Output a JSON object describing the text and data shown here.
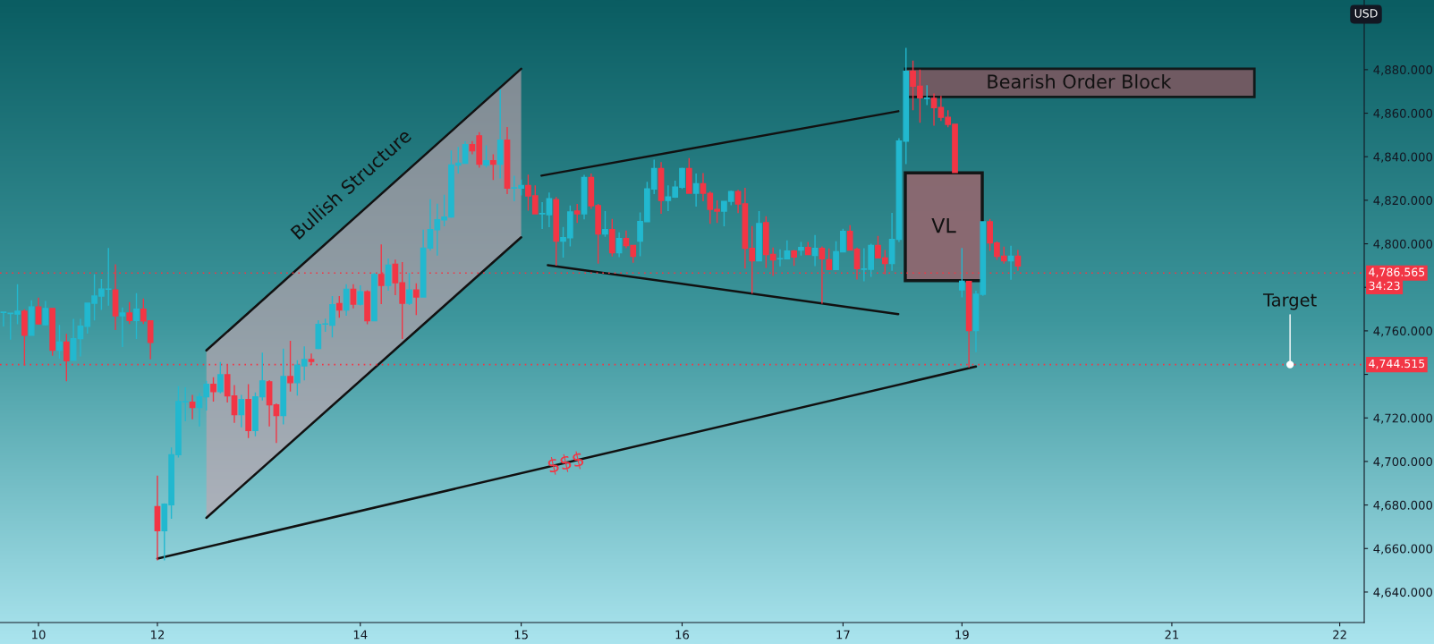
{
  "chart_data": {
    "type": "candlestick",
    "categories": [
      null,
      null,
      null,
      null,
      null,
      "10",
      null,
      null,
      null,
      null,
      null,
      null,
      null,
      null,
      null,
      null,
      null,
      null,
      null,
      null,
      null,
      null,
      "12",
      null,
      null,
      null,
      null,
      null,
      null,
      null,
      null,
      null,
      null,
      null,
      null,
      null,
      null,
      null,
      null,
      null,
      null,
      null,
      null,
      null,
      null,
      null,
      null,
      null,
      null,
      null,
      null,
      "14",
      null,
      null,
      null,
      null,
      null,
      null,
      null,
      null,
      null,
      null,
      null,
      null,
      null,
      null,
      null,
      null,
      null,
      null,
      null,
      null,
      null,
      null,
      "15",
      null,
      null,
      null,
      null,
      null,
      null,
      null,
      null,
      null,
      null,
      null,
      null,
      null,
      null,
      null,
      null,
      null,
      null,
      null,
      null,
      null,
      null,
      "16",
      null,
      null,
      null,
      null,
      null,
      null,
      null,
      null,
      null,
      null,
      null,
      null,
      null,
      null,
      null,
      null,
      null,
      null,
      null,
      null,
      null,
      null,
      "17",
      null,
      null,
      null,
      null,
      null,
      null,
      null,
      null,
      null,
      null,
      null,
      null,
      null,
      null,
      null,
      null,
      "19",
      null,
      null,
      null,
      null,
      null,
      null,
      null,
      null,
      null,
      null,
      null,
      null,
      null,
      null,
      null,
      null,
      null,
      null,
      null,
      null,
      null,
      null,
      null,
      null,
      null,
      null,
      null,
      null,
      null,
      "21",
      null,
      null,
      null,
      null,
      null,
      null,
      null,
      null,
      null,
      null,
      null,
      null,
      null,
      null,
      null,
      null,
      null,
      null,
      null,
      null,
      null,
      null,
      null,
      "22",
      null,
      null,
      null
    ],
    "ohlc": [
      [
        4768.5,
        4768.6,
        4762,
        4768.6
      ],
      [
        4768,
        4768.2,
        4756,
        4768.1
      ],
      [
        4767.7,
        4781.4,
        4763,
        4769
      ],
      [
        4769,
        4769.9,
        4744,
        4758
      ],
      [
        4758,
        4774,
        4758,
        4771
      ],
      [
        4771,
        4775.3,
        4762.8,
        4763.2
      ],
      [
        4762.8,
        4773.7,
        4762.4,
        4770.3
      ],
      [
        4770.3,
        4770.3,
        4748.6,
        4751.1
      ],
      [
        4751.1,
        4762.7,
        4747.2,
        4754.8
      ],
      [
        4754.8,
        4758.6,
        4736.8,
        4746.3
      ],
      [
        4746.5,
        4765.5,
        4746.5,
        4756.4
      ],
      [
        4756.4,
        4765.5,
        4748.2,
        4762.1
      ],
      [
        4762.1,
        4772.9,
        4758.7,
        4772.7
      ],
      [
        4772.7,
        4786.1,
        4764.8,
        4776
      ],
      [
        4776,
        4783.8,
        4769.6,
        4779.2
      ],
      [
        4779.1,
        4798.1,
        4771.6,
        4779.2
      ],
      [
        4778.8,
        4790.6,
        4760.4,
        4766.9
      ],
      [
        4766.9,
        4770.7,
        4752.6,
        4768.2
      ],
      [
        4768.2,
        4773.2,
        4763.1,
        4764.8
      ],
      [
        4764.8,
        4777.3,
        4756.3,
        4769.9
      ],
      [
        4769.9,
        4774.9,
        4763.1,
        4764.6
      ],
      [
        4764.6,
        4764.6,
        4746.9,
        4754.7
      ],
      [
        4679.2,
        4693.5,
        4654.6,
        4668.2
      ],
      [
        4668.2,
        4680.8,
        4654.6,
        4680.4
      ],
      [
        4680.1,
        4706.4,
        4673.7,
        4703.1
      ],
      [
        4703.1,
        4734.6,
        4701.8,
        4727.5
      ],
      [
        4727.4,
        4734.1,
        4718.5,
        4727.5
      ],
      [
        4727.2,
        4730.6,
        4719.4,
        4724.8
      ],
      [
        4724.8,
        4731.4,
        4716.1,
        4729.7
      ],
      [
        4729.7,
        4737.1,
        4723.4,
        4735.4
      ],
      [
        4735.4,
        4738.7,
        4727.5,
        4732.1
      ],
      [
        4732.1,
        4745.7,
        4731.3,
        4739.8
      ],
      [
        4739.8,
        4744.4,
        4727.1,
        4730.1
      ],
      [
        4730.1,
        4735.1,
        4717.7,
        4721.5
      ],
      [
        4721.5,
        4730.6,
        4715.7,
        4728.4
      ],
      [
        4728.4,
        4735.5,
        4710.8,
        4714.2
      ],
      [
        4714.2,
        4731.7,
        4711.6,
        4729.7
      ],
      [
        4729.7,
        4750,
        4728,
        4737
      ],
      [
        4736.6,
        4737.4,
        4716.1,
        4726
      ],
      [
        4726,
        4726.7,
        4708.5,
        4721.1
      ],
      [
        4721.1,
        4751.8,
        4717,
        4739
      ],
      [
        4739,
        4755.4,
        4732.1,
        4736.2
      ],
      [
        4736.2,
        4746.5,
        4730.3,
        4744.3
      ],
      [
        4743.9,
        4752.9,
        4737.3,
        4746.8
      ],
      [
        4746.8,
        4749.6,
        4744.3,
        4746
      ],
      [
        4751.9,
        4764.9,
        4751.5,
        4763
      ],
      [
        4763.1,
        4765.6,
        4759.5,
        4763.2
      ],
      [
        4762.6,
        4776,
        4757,
        4772
      ],
      [
        4772.5,
        4776,
        4766,
        4769.6
      ],
      [
        4769.6,
        4781.4,
        4766.9,
        4779.1
      ],
      [
        4779.1,
        4781.4,
        4770.3,
        4772.3
      ],
      [
        4772.3,
        4780.9,
        4771.7,
        4778
      ],
      [
        4778,
        4778.7,
        4763,
        4764.7
      ],
      [
        4764.7,
        4786.6,
        4764.7,
        4785.9
      ],
      [
        4785.9,
        4799.7,
        4772.3,
        4780.9
      ],
      [
        4780.9,
        4793.2,
        4778.4,
        4790.2
      ],
      [
        4790.6,
        4792.7,
        4776.4,
        4782.1
      ],
      [
        4782.1,
        4791.6,
        4756.3,
        4772.7
      ],
      [
        4772.7,
        4786.6,
        4771.9,
        4778.8
      ],
      [
        4778.8,
        4781.8,
        4767.3,
        4775.6
      ],
      [
        4775.6,
        4806.5,
        4775.6,
        4798
      ],
      [
        4798,
        4820.5,
        4796.8,
        4806.5
      ],
      [
        4806.5,
        4818.4,
        4794.6,
        4811
      ],
      [
        4811,
        4822.5,
        4808,
        4812.3
      ],
      [
        4812.3,
        4842.9,
        4811.9,
        4836.2
      ],
      [
        4836.2,
        4844.5,
        4832.3,
        4837
      ],
      [
        4837,
        4847.2,
        4837,
        4845.6
      ],
      [
        4845.6,
        4847.2,
        4841.1,
        4842.7
      ],
      [
        4849.6,
        4851.3,
        4835,
        4836.6
      ],
      [
        4836.2,
        4845.2,
        4835.1,
        4838.2
      ],
      [
        4838.2,
        4841.1,
        4829.3,
        4836.6
      ],
      [
        4836.6,
        4870.9,
        4830,
        4847.6
      ],
      [
        4847.6,
        4853.7,
        4822.8,
        4825.6
      ],
      [
        4825.6,
        4831.3,
        4819.5,
        4825.7
      ],
      [
        4825.6,
        4829.5,
        4822.2,
        4826.8
      ],
      [
        4826.8,
        4831.8,
        4815.2,
        4822
      ],
      [
        4822,
        4826.8,
        4813.8,
        4813.8
      ],
      [
        4813.8,
        4819.1,
        4806.8,
        4813.9
      ],
      [
        4813.4,
        4823.6,
        4807.6,
        4820.7
      ],
      [
        4820.3,
        4821.5,
        4790,
        4801.2
      ],
      [
        4801.2,
        4807.7,
        4793.7,
        4802.8
      ],
      [
        4802.8,
        4817.6,
        4798.8,
        4814.6
      ],
      [
        4815,
        4818.3,
        4809.6,
        4813.8
      ],
      [
        4813.8,
        4831.7,
        4811.2,
        4830.5
      ],
      [
        4830.5,
        4832.3,
        4816,
        4817.5
      ],
      [
        4817.5,
        4818.3,
        4790.9,
        4804.5
      ],
      [
        4804.5,
        4815,
        4803.2,
        4806.5
      ],
      [
        4806.5,
        4811.4,
        4794.2,
        4795.9
      ],
      [
        4795.9,
        4805.3,
        4793.9,
        4802.4
      ],
      [
        4802.4,
        4806.1,
        4798,
        4799.2
      ],
      [
        4799.2,
        4799.4,
        4791.3,
        4794.3
      ],
      [
        4801.2,
        4814.4,
        4794.3,
        4810.2
      ],
      [
        4810.2,
        4828.5,
        4810.2,
        4825.2
      ],
      [
        4825.2,
        4838.6,
        4822.8,
        4834.6
      ],
      [
        4834.6,
        4837.5,
        4813.8,
        4819.9
      ],
      [
        4819.9,
        4826.8,
        4815,
        4821.5
      ],
      [
        4821.5,
        4829,
        4821.1,
        4826
      ],
      [
        4826,
        4835,
        4825.2,
        4834.6
      ],
      [
        4834.6,
        4839.4,
        4823.2,
        4823.2
      ],
      [
        4823.2,
        4832.3,
        4817.1,
        4827.6
      ],
      [
        4827.6,
        4832.5,
        4819.5,
        4823.2
      ],
      [
        4823.2,
        4824.1,
        4809.2,
        4815.8
      ],
      [
        4815.8,
        4820,
        4809.6,
        4815
      ],
      [
        4815,
        4819.5,
        4808,
        4819.5
      ],
      [
        4819.5,
        4824.5,
        4817.7,
        4824
      ],
      [
        4824,
        4824.8,
        4814.1,
        4818.3
      ],
      [
        4818.3,
        4825.7,
        4788.6,
        4797.9
      ],
      [
        4797.9,
        4808.1,
        4777.1,
        4792.2
      ],
      [
        4792.2,
        4815,
        4792.2,
        4809.3
      ],
      [
        4809.7,
        4812.7,
        4788.9,
        4795.1
      ],
      [
        4795.1,
        4798.3,
        4785.2,
        4792.6
      ],
      [
        4793.1,
        4797.5,
        4789.7,
        4793.2
      ],
      [
        4793.1,
        4801.6,
        4793.1,
        4796.7
      ],
      [
        4796.7,
        4797.1,
        4789.9,
        4793.9
      ],
      [
        4797.1,
        4800.8,
        4794.6,
        4798.3
      ],
      [
        4798.3,
        4800.8,
        4795.1,
        4795.1
      ],
      [
        4794.7,
        4804,
        4789.8,
        4797.9
      ],
      [
        4797.9,
        4798.8,
        4772.5,
        4793.1
      ],
      [
        4792.6,
        4797.9,
        4788.2,
        4788.2
      ],
      [
        4788.2,
        4801.2,
        4788.2,
        4796.3
      ],
      [
        4796.3,
        4806.9,
        4796.3,
        4805.7
      ],
      [
        4805.7,
        4808.5,
        4797.1,
        4797.1
      ],
      [
        4797.5,
        4798.3,
        4783.6,
        4788.6
      ],
      [
        4788.3,
        4798,
        4782.8,
        4788.4
      ],
      [
        4788.3,
        4800,
        4784.8,
        4799.2
      ],
      [
        4799.2,
        4803.6,
        4793.5,
        4793.5
      ],
      [
        4793.5,
        4797.1,
        4786,
        4791
      ],
      [
        4791,
        4814.2,
        4787.6,
        4802
      ],
      [
        4802.1,
        4848.5,
        4800.8,
        4847.2
      ],
      [
        4847.2,
        4890,
        4836.6,
        4879.3
      ],
      [
        4879.3,
        4884.2,
        4861.4,
        4872.4
      ],
      [
        4872.4,
        4880.1,
        4855.6,
        4867.1
      ],
      [
        4866.8,
        4872.9,
        4863.7,
        4866.9
      ],
      [
        4866.8,
        4869.1,
        4854.3,
        4862.6
      ],
      [
        4862.6,
        4867.9,
        4856.4,
        4858.1
      ],
      [
        4858.1,
        4861.4,
        4853.5,
        4854.9
      ],
      [
        4854.9,
        4854.9,
        4832.8,
        4832.8
      ],
      [
        4778.8,
        4798.1,
        4775.4,
        4782.8
      ],
      [
        4782.7,
        4782.7,
        4743.1,
        4760.1
      ],
      [
        4760.1,
        4778.4,
        4750.2,
        4776.8
      ],
      [
        4776.8,
        4810.1,
        4776.1,
        4810.1
      ],
      [
        4810.1,
        4811.4,
        4796.7,
        4800.4
      ],
      [
        4800.4,
        4801.2,
        4792.6,
        4794.3
      ],
      [
        4794.3,
        4798.7,
        4790.9,
        4792.2
      ],
      [
        4792.2,
        4799.1,
        4783.5,
        4794.3
      ],
      [
        4794.3,
        4797.1,
        4787.6,
        4789.8
      ],
      null,
      null,
      null,
      null,
      null,
      null,
      null,
      null,
      null,
      null,
      null,
      null,
      null,
      null,
      null,
      null,
      null,
      null,
      null,
      null,
      null,
      null,
      null,
      null,
      null,
      null,
      null,
      null,
      null,
      null,
      null,
      null,
      null,
      null,
      null,
      null,
      null,
      null,
      null,
      null,
      null,
      null,
      null,
      null,
      null,
      null,
      null,
      null,
      null
    ],
    "colors": [
      "#22b8cf",
      "#22b8cf",
      "#22b8cf",
      "#f23645",
      "#22b8cf",
      "#f23645",
      "#22b8cf",
      "#f23645",
      "#22b8cf",
      "#f23645",
      "#22b8cf",
      "#22b8cf",
      "#22b8cf",
      "#22b8cf",
      "#22b8cf",
      "#22b8cf",
      "#f23645",
      "#22b8cf",
      "#f23645",
      "#22b8cf",
      "#f23645",
      "#f23645",
      "#f23645",
      "#22b8cf",
      "#22b8cf",
      "#22b8cf",
      "#22b8cf",
      "#f23645",
      "#22b8cf",
      "#22b8cf",
      "#f23645",
      "#22b8cf",
      "#f23645",
      "#f23645",
      "#22b8cf",
      "#f23645",
      "#22b8cf",
      "#22b8cf",
      "#f23645",
      "#f23645",
      "#22b8cf",
      "#f23645",
      "#22b8cf",
      "#22b8cf",
      "#f23645",
      "#22b8cf",
      "#22b8cf",
      "#22b8cf",
      "#f23645",
      "#22b8cf",
      "#f23645",
      "#22b8cf",
      "#f23645",
      "#22b8cf",
      "#f23645",
      "#22b8cf",
      "#f23645",
      "#f23645",
      "#22b8cf",
      "#f23645",
      "#22b8cf",
      "#22b8cf",
      "#22b8cf",
      "#22b8cf",
      "#22b8cf",
      "#22b8cf",
      "#22b8cf",
      "#f23645",
      "#f23645",
      "#22b8cf",
      "#f23645",
      "#22b8cf",
      "#f23645",
      "#22b8cf",
      "#22b8cf",
      "#f23645",
      "#f23645",
      "#22b8cf",
      "#22b8cf",
      "#f23645",
      "#22b8cf",
      "#22b8cf",
      "#f23645",
      "#22b8cf",
      "#f23645",
      "#f23645",
      "#22b8cf",
      "#f23645",
      "#22b8cf",
      "#f23645",
      "#f23645",
      "#22b8cf",
      "#22b8cf",
      "#22b8cf",
      "#f23645",
      "#22b8cf",
      "#22b8cf",
      "#22b8cf",
      "#f23645",
      "#22b8cf",
      "#f23645",
      "#f23645",
      "#f23645",
      "#22b8cf",
      "#22b8cf",
      "#f23645",
      "#f23645",
      "#f23645",
      "#22b8cf",
      "#f23645",
      "#f23645",
      "#22b8cf",
      "#22b8cf",
      "#f23645",
      "#22b8cf",
      "#f23645",
      "#22b8cf",
      "#f23645",
      "#f23645",
      "#22b8cf",
      "#22b8cf",
      "#f23645",
      "#f23645",
      "#22b8cf",
      "#22b8cf",
      "#f23645",
      "#f23645",
      "#22b8cf",
      "#22b8cf",
      "#22b8cf",
      "#f23645",
      "#f23645",
      "#22b8cf",
      "#f23645",
      "#f23645",
      "#f23645",
      "#f23645",
      "#22b8cf",
      "#f23645",
      "#22b8cf",
      "#22b8cf",
      "#f23645",
      "#f23645",
      "#f23645",
      "#22b8cf",
      "#f23645",
      null,
      null,
      null,
      null,
      null,
      null,
      null,
      null,
      null,
      null,
      null,
      null,
      null,
      null,
      null,
      null,
      null,
      null,
      null,
      null,
      null,
      null,
      null,
      null,
      null,
      null,
      null,
      null,
      null,
      null,
      null,
      null,
      null,
      null,
      null,
      null,
      null,
      null,
      null,
      null,
      null,
      null,
      null,
      null,
      null,
      null,
      null,
      null,
      null
    ],
    "ylim": [
      4626,
      4912
    ],
    "yticks": [
      {
        "value": 4640,
        "label": "4,640.000"
      },
      {
        "value": 4660,
        "label": "4,660.000"
      },
      {
        "value": 4680,
        "label": "4,680.000"
      },
      {
        "value": 4700,
        "label": "4,700.000"
      },
      {
        "value": 4720,
        "label": "4,720.000"
      },
      {
        "value": 4740,
        "label": null
      },
      {
        "value": 4760,
        "label": "4,760.000"
      },
      {
        "value": 4780,
        "label": null
      },
      {
        "value": 4800,
        "label": "4,800.000"
      },
      {
        "value": 4820,
        "label": "4,820.000"
      },
      {
        "value": 4840,
        "label": "4,840.000"
      },
      {
        "value": 4860,
        "label": "4,860.000"
      },
      {
        "value": 4880,
        "label": "4,880.000"
      }
    ],
    "ref_lines": [
      {
        "axis": "y",
        "value": 4786.565,
        "label": "4,786.565",
        "color": "#f23645",
        "line_style": "dotted"
      },
      {
        "axis": "y",
        "value": 4744.515,
        "label": "4,744.515",
        "color": "#f23645",
        "line_style": "dotted"
      }
    ],
    "series": [
      {
        "type": "line",
        "color": "#111111",
        "values": [
          null,
          null,
          null,
          null,
          null,
          null,
          null,
          null,
          null,
          null,
          null,
          null,
          null,
          null,
          null,
          null,
          null,
          null,
          null,
          null,
          null,
          null,
          4655.4,
          null,
          null,
          null,
          null,
          null,
          null,
          null,
          null,
          null,
          null,
          null,
          null,
          null,
          null,
          null,
          null,
          null,
          null,
          null,
          null,
          null,
          null,
          null,
          null,
          null,
          null,
          null,
          null,
          null,
          null,
          null,
          null,
          null,
          null,
          null,
          null,
          null,
          null,
          null,
          null,
          null,
          null,
          null,
          null,
          null,
          null,
          null,
          null,
          null,
          null,
          null,
          null,
          null,
          null,
          null,
          null,
          null,
          null,
          null,
          null,
          null,
          null,
          null,
          null,
          null,
          null,
          null,
          null,
          null,
          null,
          null,
          null,
          null,
          null,
          null,
          null,
          null,
          null,
          null,
          null,
          null,
          null,
          null,
          null,
          null,
          null,
          null,
          null,
          null,
          null,
          null,
          null,
          null,
          null,
          null,
          null,
          null,
          null,
          null,
          null,
          null,
          null,
          null,
          null,
          null,
          null,
          null,
          null,
          null,
          null,
          null,
          null,
          null,
          null,
          null,
          null,
          4743.6,
          null,
          null,
          null,
          null,
          null,
          null,
          null,
          null,
          null,
          null,
          null,
          null,
          null,
          null,
          null,
          null,
          null,
          null,
          null,
          null,
          null,
          null,
          null,
          null,
          null,
          null,
          null,
          null,
          null,
          null,
          null,
          null,
          null,
          null,
          null,
          null,
          null,
          null,
          null,
          null,
          null,
          null,
          null,
          null,
          null,
          null,
          null,
          null,
          null,
          null,
          null,
          null,
          null,
          null,
          null
        ]
      }
    ],
    "annotations": [
      "Bullish Structure",
      "$$$",
      "VL",
      "Bearish Order Block",
      {
        "text": "Target",
        "y": 4744.515
      },
      "USD",
      "34:23"
    ]
  }
}
